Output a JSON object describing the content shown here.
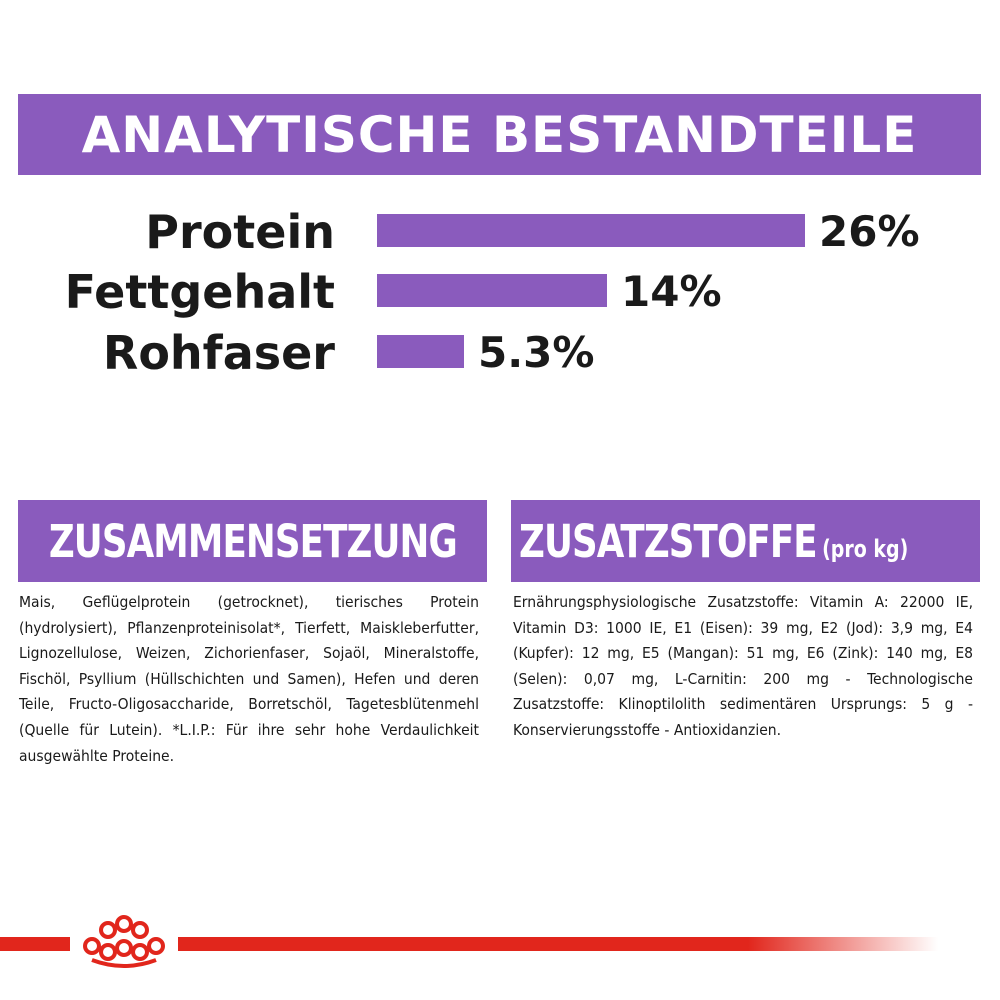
{
  "banner": {
    "title": "ANALYTISCHE BESTANDTEILE"
  },
  "nutrients": [
    {
      "label": "Protein",
      "value": "26%",
      "percent": 26
    },
    {
      "label": "Fettgehalt",
      "value": "14%",
      "percent": 14
    },
    {
      "label": "Rohfaser",
      "value": "5.3%",
      "percent": 5.3
    }
  ],
  "composition": {
    "heading": "ZUSAMMENSETZUNG",
    "text": "Mais, Geflügelprotein (getrocknet), tierisches Protein (hydrolysiert), Pflanzenproteinisolat*, Tierfett, Maiskleberfutter, Lignozellulose, Weizen, Zichorienfaser, Sojaöl, Mineralstoffe, Fischöl, Psyllium (Hüllschichten und Samen), Hefen und deren Teile, Fructo-Oligosaccharide, Borretschöl, Tagetesblütenmehl (Quelle für Lutein). *L.I.P.: Für ihre sehr hohe Verdaulichkeit ausgewählte Proteine."
  },
  "additives": {
    "heading": "ZUSATZSTOFFE",
    "heading_suffix": "(pro kg)",
    "text": "Ernährungsphysiologische Zusatzstoffe: Vitamin A: 22000 IE, Vitamin D3: 1000 IE, E1 (Eisen): 39 mg, E2 (Jod): 3,9 mg, E4 (Kupfer): 12 mg, E5 (Mangan): 51 mg, E6 (Zink): 140 mg, E8 (Selen): 0,07 mg, L-Carnitin: 200 mg - Technologische Zusatzstoffe: Klinoptilolith sedimentären Ursprungs: 5 g - Konservierungsstoffe - Antioxidanzien."
  },
  "colors": {
    "accent": "#8a5bbd",
    "brand_red": "#e1261c"
  },
  "icons": {
    "footer": "crown-logo-icon"
  }
}
